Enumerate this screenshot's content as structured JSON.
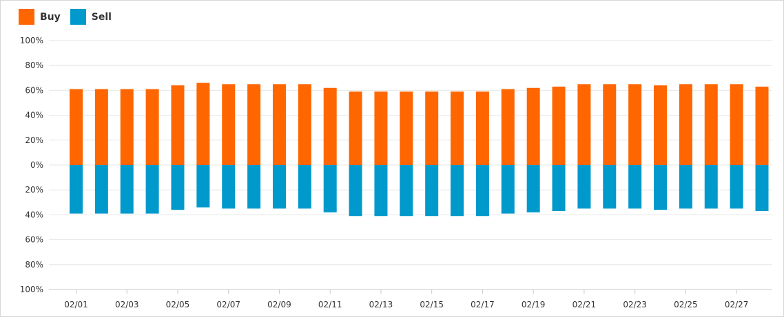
{
  "chart_data": {
    "type": "bar",
    "stacked": true,
    "legend_position": "top-left",
    "grid": true,
    "colors": {
      "buy": "#ff6600",
      "sell": "#0099cc"
    },
    "ylim": [
      -100,
      100
    ],
    "y_ticks": [
      100,
      80,
      60,
      40,
      20,
      0,
      -20,
      -40,
      -60,
      -80,
      -100
    ],
    "y_tick_labels": [
      "100%",
      "80%",
      "60%",
      "40%",
      "20%",
      "0%",
      "20%",
      "40%",
      "60%",
      "80%",
      "100%"
    ],
    "categories": [
      "02/01",
      "02/02",
      "02/03",
      "02/04",
      "02/05",
      "02/06",
      "02/07",
      "02/08",
      "02/09",
      "02/10",
      "02/11",
      "02/12",
      "02/13",
      "02/14",
      "02/15",
      "02/16",
      "02/17",
      "02/18",
      "02/19",
      "02/20",
      "02/21",
      "02/22",
      "02/23",
      "02/24",
      "02/25",
      "02/26",
      "02/27",
      "02/28"
    ],
    "x_tick_labels": [
      "02/01",
      "02/03",
      "02/05",
      "02/07",
      "02/09",
      "02/11",
      "02/13",
      "02/15",
      "02/17",
      "02/19",
      "02/21",
      "02/23",
      "02/25",
      "02/27"
    ],
    "series": [
      {
        "name": "Buy",
        "values": [
          61,
          61,
          61,
          61,
          64,
          66,
          65,
          65,
          65,
          65,
          62,
          59,
          59,
          59,
          59,
          59,
          59,
          61,
          62,
          63,
          65,
          65,
          65,
          64,
          65,
          65,
          65,
          63
        ]
      },
      {
        "name": "Sell",
        "values": [
          39,
          39,
          39,
          39,
          36,
          34,
          35,
          35,
          35,
          35,
          38,
          41,
          41,
          41,
          41,
          41,
          41,
          39,
          38,
          37,
          35,
          35,
          35,
          36,
          35,
          35,
          35,
          37
        ]
      }
    ]
  }
}
